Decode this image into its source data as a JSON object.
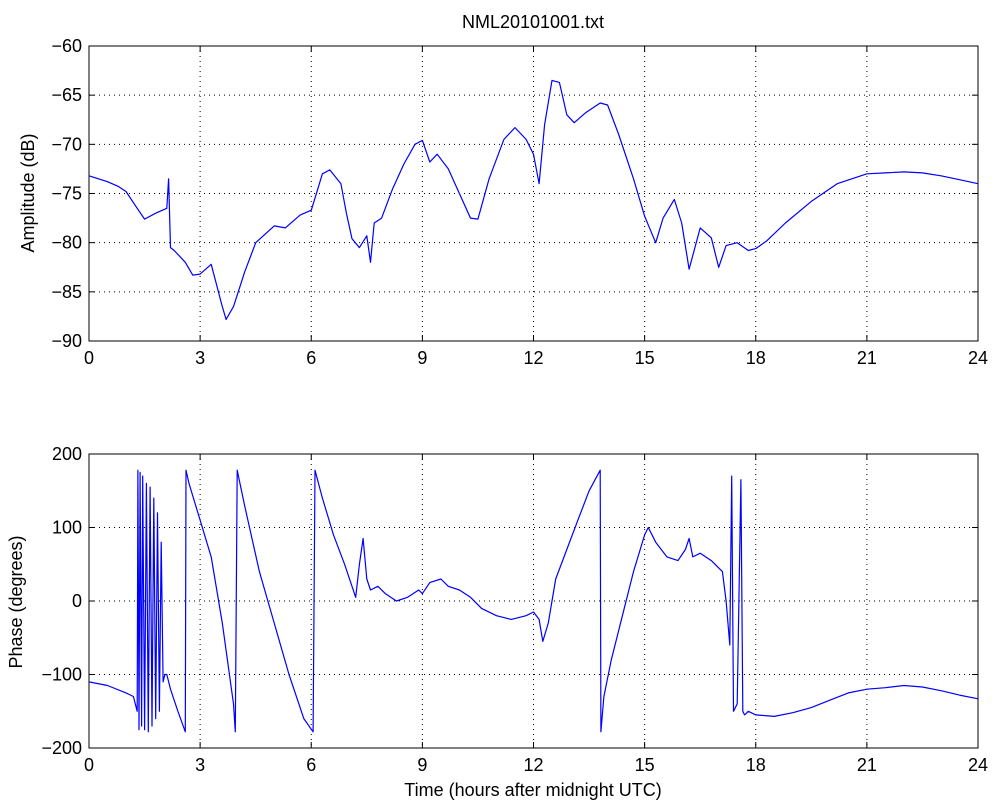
{
  "title": "NML20101001.txt",
  "chart_data": [
    {
      "type": "line",
      "ylabel": "Amplitude (dB)",
      "xlabel": "",
      "xlim": [
        0,
        24
      ],
      "ylim": [
        -90,
        -60
      ],
      "xticks": [
        0,
        3,
        6,
        9,
        12,
        15,
        18,
        21,
        24
      ],
      "yticks": [
        -90,
        -85,
        -80,
        -75,
        -70,
        -65,
        -60
      ],
      "grid": true,
      "line_color": "#0000ff",
      "x": [
        0,
        0.5,
        0.8,
        1.0,
        1.3,
        1.5,
        1.8,
        2.1,
        2.15,
        2.2,
        2.3,
        2.6,
        2.8,
        3.0,
        3.3,
        3.6,
        3.7,
        3.9,
        4.2,
        4.5,
        5.0,
        5.3,
        5.7,
        6.0,
        6.3,
        6.5,
        6.8,
        6.95,
        7.1,
        7.3,
        7.5,
        7.6,
        7.7,
        7.9,
        8.2,
        8.5,
        8.8,
        9.0,
        9.2,
        9.4,
        9.7,
        10.0,
        10.3,
        10.5,
        10.8,
        11.2,
        11.5,
        11.8,
        12.0,
        12.15,
        12.3,
        12.5,
        12.7,
        12.9,
        13.1,
        13.4,
        13.8,
        14.0,
        14.3,
        14.7,
        15.0,
        15.3,
        15.5,
        15.8,
        16.0,
        16.2,
        16.5,
        16.8,
        17.0,
        17.2,
        17.5,
        17.8,
        18.0,
        18.3,
        18.8,
        19.5,
        20.2,
        21.0,
        21.5,
        22.0,
        22.5,
        23.0,
        23.5,
        24.0
      ],
      "y": [
        -73.2,
        -73.8,
        -74.3,
        -74.8,
        -76.5,
        -77.6,
        -77.0,
        -76.5,
        -73.5,
        -80.5,
        -80.8,
        -82.0,
        -83.3,
        -83.2,
        -82.2,
        -86.5,
        -87.8,
        -86.5,
        -83.0,
        -80.0,
        -78.3,
        -78.5,
        -77.2,
        -76.7,
        -73.0,
        -72.6,
        -74.0,
        -77.0,
        -79.6,
        -80.5,
        -79.3,
        -82.0,
        -78.0,
        -77.5,
        -74.5,
        -72.0,
        -70.0,
        -69.6,
        -71.8,
        -71.0,
        -72.5,
        -75.0,
        -77.5,
        -77.6,
        -73.5,
        -69.5,
        -68.3,
        -69.5,
        -71.0,
        -74.0,
        -68.0,
        -63.5,
        -63.7,
        -67.0,
        -67.8,
        -66.8,
        -65.8,
        -66.0,
        -69.0,
        -73.5,
        -77.3,
        -80.0,
        -77.5,
        -75.6,
        -78.0,
        -82.7,
        -78.5,
        -79.5,
        -82.5,
        -80.3,
        -80.0,
        -80.8,
        -80.6,
        -79.8,
        -78.0,
        -75.8,
        -74.0,
        -73.0,
        -72.9,
        -72.8,
        -72.9,
        -73.2,
        -73.6,
        -74.0
      ]
    },
    {
      "type": "line",
      "ylabel": "Phase (degrees)",
      "xlabel": "Time (hours after midnight UTC)",
      "xlim": [
        0,
        24
      ],
      "ylim": [
        -200,
        200
      ],
      "xticks": [
        0,
        3,
        6,
        9,
        12,
        15,
        18,
        21,
        24
      ],
      "yticks": [
        -200,
        -100,
        0,
        100,
        200
      ],
      "grid": true,
      "line_color": "#0000ff",
      "x": [
        0,
        0.5,
        1.0,
        1.2,
        1.3,
        1.32,
        1.35,
        1.38,
        1.42,
        1.45,
        1.5,
        1.55,
        1.6,
        1.65,
        1.7,
        1.75,
        1.8,
        1.85,
        1.9,
        1.95,
        2.0,
        2.05,
        2.1,
        2.2,
        2.4,
        2.6,
        2.62,
        2.7,
        3.0,
        3.3,
        3.6,
        3.9,
        3.95,
        4.0,
        4.2,
        4.6,
        5.0,
        5.4,
        5.8,
        6.05,
        6.1,
        6.3,
        6.6,
        6.9,
        7.1,
        7.2,
        7.3,
        7.4,
        7.5,
        7.6,
        7.8,
        8.0,
        8.3,
        8.6,
        8.9,
        9.0,
        9.2,
        9.5,
        9.7,
        10.0,
        10.3,
        10.6,
        11.0,
        11.4,
        11.8,
        12.0,
        12.15,
        12.25,
        12.4,
        12.6,
        12.9,
        13.2,
        13.5,
        13.8,
        13.82,
        13.9,
        14.1,
        14.4,
        14.7,
        15.0,
        15.1,
        15.3,
        15.6,
        15.9,
        16.1,
        16.2,
        16.3,
        16.5,
        16.8,
        17.0,
        17.1,
        17.2,
        17.3,
        17.35,
        17.4,
        17.5,
        17.6,
        17.65,
        17.7,
        17.8,
        18.0,
        18.5,
        19.0,
        19.5,
        20.0,
        20.5,
        21.0,
        21.5,
        22.0,
        22.5,
        23.0,
        23.5,
        24.0
      ],
      "y": [
        -110,
        -115,
        -125,
        -130,
        -150,
        178,
        -175,
        175,
        -170,
        170,
        -175,
        160,
        -178,
        155,
        -170,
        140,
        -160,
        120,
        -150,
        80,
        -110,
        -100,
        -100,
        -120,
        -150,
        -178,
        178,
        160,
        110,
        60,
        -30,
        -140,
        -178,
        178,
        130,
        40,
        -30,
        -100,
        -160,
        -178,
        178,
        140,
        90,
        50,
        20,
        5,
        50,
        85,
        30,
        15,
        20,
        10,
        0,
        5,
        15,
        10,
        25,
        30,
        20,
        15,
        5,
        -10,
        -20,
        -25,
        -20,
        -15,
        -25,
        -55,
        -30,
        30,
        70,
        110,
        150,
        178,
        -178,
        -130,
        -80,
        -20,
        40,
        90,
        100,
        80,
        60,
        55,
        70,
        85,
        60,
        65,
        55,
        45,
        40,
        0,
        -60,
        170,
        -150,
        -140,
        165,
        -150,
        -155,
        -150,
        -155,
        -157,
        -152,
        -145,
        -135,
        -125,
        -120,
        -118,
        -115,
        -117,
        -122,
        -128,
        -133
      ]
    }
  ]
}
